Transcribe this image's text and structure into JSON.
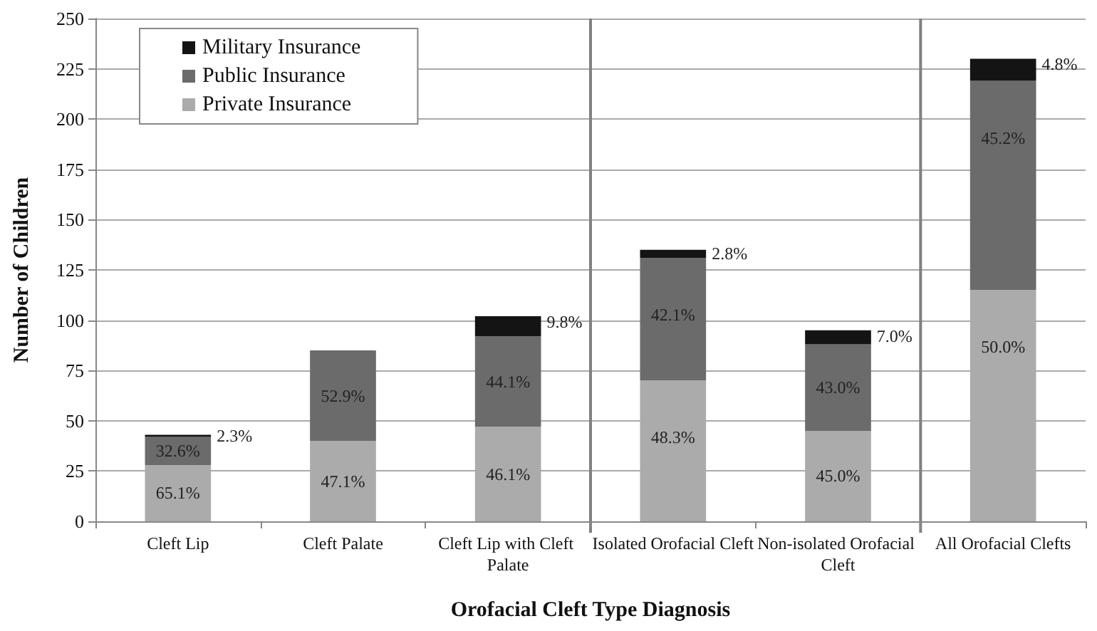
{
  "chart_data": {
    "type": "bar",
    "stacked": true,
    "xlabel": "Orofacial Cleft Type Diagnosis",
    "ylabel": "Number of Children",
    "categories": [
      "Cleft Lip",
      "Cleft Palate",
      "Cleft Lip with Cleft Palate",
      "Isolated Orofacial Cleft",
      "Non-isolated Orofacial Cleft",
      "All Orofacial Clefts"
    ],
    "series": [
      {
        "name": "Private Insurance",
        "color": "#ababab",
        "values": [
          28,
          40,
          47,
          70,
          45,
          115
        ]
      },
      {
        "name": "Public Insurance",
        "color": "#6b6b6b",
        "values": [
          14,
          45,
          45,
          61,
          43,
          104
        ]
      },
      {
        "name": "Military Insurance",
        "color": "#141414",
        "values": [
          1,
          0,
          10,
          4,
          7,
          11
        ]
      }
    ],
    "annotations": [
      {
        "text": "65.1%",
        "x": "Cleft Lip",
        "y": 28
      },
      {
        "text": "47.1%",
        "x": "Cleft Palate",
        "y": 40
      },
      {
        "text": "46.1%",
        "x": "Cleft Lip with Cleft Palate",
        "y": 47
      },
      {
        "text": "48.3%",
        "x": "Isolated Orofacial Cleft",
        "y": 70
      },
      {
        "text": "45.0%",
        "x": "Non-isolated Orofacial Cleft",
        "y": 45
      },
      {
        "text": "50.0%",
        "x": "All Orofacial Clefts",
        "y": 115
      },
      {
        "text": "32.6%",
        "x": "Cleft Lip",
        "y": 42
      },
      {
        "text": "52.9%",
        "x": "Cleft Palate",
        "y": 85
      },
      {
        "text": "44.1%",
        "x": "Cleft Lip with Cleft Palate",
        "y": 92
      },
      {
        "text": "42.1%",
        "x": "Isolated Orofacial Cleft",
        "y": 131
      },
      {
        "text": "43.0%",
        "x": "Non-isolated Orofacial Cleft",
        "y": 88
      },
      {
        "text": "45.2%",
        "x": "All Orofacial Clefts",
        "y": 219
      },
      {
        "text": "2.3%",
        "x": "Cleft Lip",
        "y": 43
      },
      {
        "text": "9.8%",
        "x": "Cleft Lip with Cleft Palate",
        "y": 102
      },
      {
        "text": "2.8%",
        "x": "Isolated Orofacial Cleft",
        "y": 135
      },
      {
        "text": "7.0%",
        "x": "Non-isolated Orofacial Cleft",
        "y": 95
      },
      {
        "text": "4.8%",
        "x": "All Orofacial Clefts",
        "y": 230
      }
    ],
    "ylim": [
      0,
      250
    ],
    "yticks": [
      0,
      25,
      50,
      75,
      100,
      125,
      150,
      175,
      200,
      225,
      250
    ],
    "grid": "y",
    "legend": "top left"
  }
}
